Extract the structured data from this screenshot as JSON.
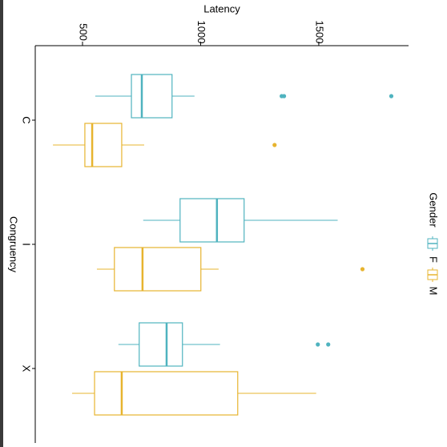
{
  "chart_data": {
    "type": "boxplot",
    "x_label": "Latency",
    "y_label": "Congruency",
    "legend_title": "Gender",
    "categories": [
      "C",
      "I",
      "X"
    ],
    "xlim": [
      300,
      1880
    ],
    "xticks": [
      500,
      1000,
      1500
    ],
    "series": [
      {
        "name": "F",
        "color": "#4fb3bf",
        "values": [
          {
            "whisker_low": 554,
            "q1": 707,
            "median": 751,
            "q3": 879,
            "whisker_high": 974,
            "outliers": [
              1343,
              1353,
              1807
            ]
          },
          {
            "whisker_low": 757,
            "q1": 913,
            "median": 1069,
            "q3": 1184,
            "whisker_high": 1580,
            "outliers": []
          },
          {
            "whisker_low": 652,
            "q1": 740,
            "median": 856,
            "q3": 923,
            "whisker_high": 1082,
            "outliers": [
              1496,
              1540
            ]
          }
        ]
      },
      {
        "name": "M",
        "color": "#e7b42f",
        "values": [
          {
            "whisker_low": 375,
            "q1": 510,
            "median": 541,
            "q3": 666,
            "whisker_high": 761,
            "outliers": [
              1313
            ]
          },
          {
            "whisker_low": 561,
            "q1": 635,
            "median": 754,
            "q3": 1001,
            "whisker_high": 1076,
            "outliers": [
              1685
            ]
          },
          {
            "whisker_low": 456,
            "q1": 551,
            "median": 666,
            "q3": 1157,
            "whisker_high": 1489,
            "outliers": []
          }
        ]
      }
    ]
  }
}
